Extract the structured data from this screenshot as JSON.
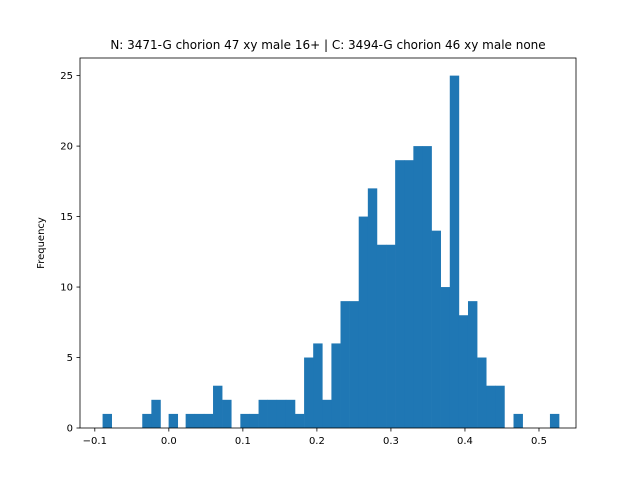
{
  "chart_data": {
    "type": "bar",
    "title": "N: 3471-G chorion 47 xy male 16+ | C: 3494-G chorion 46 xy male none",
    "xlabel": "",
    "ylabel": "Frequency",
    "xlim": [
      -0.12,
      0.55
    ],
    "ylim": [
      0,
      26.25
    ],
    "grid": false,
    "bar_color": "#1f77b4",
    "bin_width": 0.0123,
    "x_ticks": [
      -0.1,
      0.0,
      0.1,
      0.2,
      0.3,
      0.4,
      0.5
    ],
    "x_tick_labels": [
      "−0.1",
      "0.0",
      "0.1",
      "0.2",
      "0.3",
      "0.4",
      "0.5"
    ],
    "y_ticks": [
      0,
      5,
      10,
      15,
      20,
      25
    ],
    "y_tick_labels": [
      "0",
      "5",
      "10",
      "15",
      "20",
      "25"
    ],
    "bins": [
      {
        "x": -0.0895,
        "count": 1
      },
      {
        "x": -0.0359,
        "count": 1
      },
      {
        "x": -0.0236,
        "count": 2
      },
      {
        "x": -0.0003,
        "count": 1
      },
      {
        "x": 0.0227,
        "count": 1
      },
      {
        "x": 0.0351,
        "count": 1
      },
      {
        "x": 0.0474,
        "count": 1
      },
      {
        "x": 0.0597,
        "count": 3
      },
      {
        "x": 0.072,
        "count": 2
      },
      {
        "x": 0.0966,
        "count": 1
      },
      {
        "x": 0.1089,
        "count": 1
      },
      {
        "x": 0.1212,
        "count": 2
      },
      {
        "x": 0.1335,
        "count": 2
      },
      {
        "x": 0.1458,
        "count": 2
      },
      {
        "x": 0.1581,
        "count": 2
      },
      {
        "x": 0.1704,
        "count": 1
      },
      {
        "x": 0.1827,
        "count": 5
      },
      {
        "x": 0.195,
        "count": 6
      },
      {
        "x": 0.2073,
        "count": 2
      },
      {
        "x": 0.2196,
        "count": 6
      },
      {
        "x": 0.2319,
        "count": 9
      },
      {
        "x": 0.2442,
        "count": 9
      },
      {
        "x": 0.2565,
        "count": 15
      },
      {
        "x": 0.2688,
        "count": 17
      },
      {
        "x": 0.2811,
        "count": 13
      },
      {
        "x": 0.2934,
        "count": 13
      },
      {
        "x": 0.3057,
        "count": 19
      },
      {
        "x": 0.318,
        "count": 19
      },
      {
        "x": 0.3303,
        "count": 20
      },
      {
        "x": 0.3426,
        "count": 20
      },
      {
        "x": 0.3549,
        "count": 14
      },
      {
        "x": 0.3672,
        "count": 10
      },
      {
        "x": 0.3795,
        "count": 25
      },
      {
        "x": 0.3918,
        "count": 8
      },
      {
        "x": 0.4041,
        "count": 9
      },
      {
        "x": 0.4164,
        "count": 5
      },
      {
        "x": 0.4287,
        "count": 3
      },
      {
        "x": 0.441,
        "count": 3
      },
      {
        "x": 0.4656,
        "count": 1
      },
      {
        "x": 0.5148,
        "count": 1
      }
    ]
  }
}
